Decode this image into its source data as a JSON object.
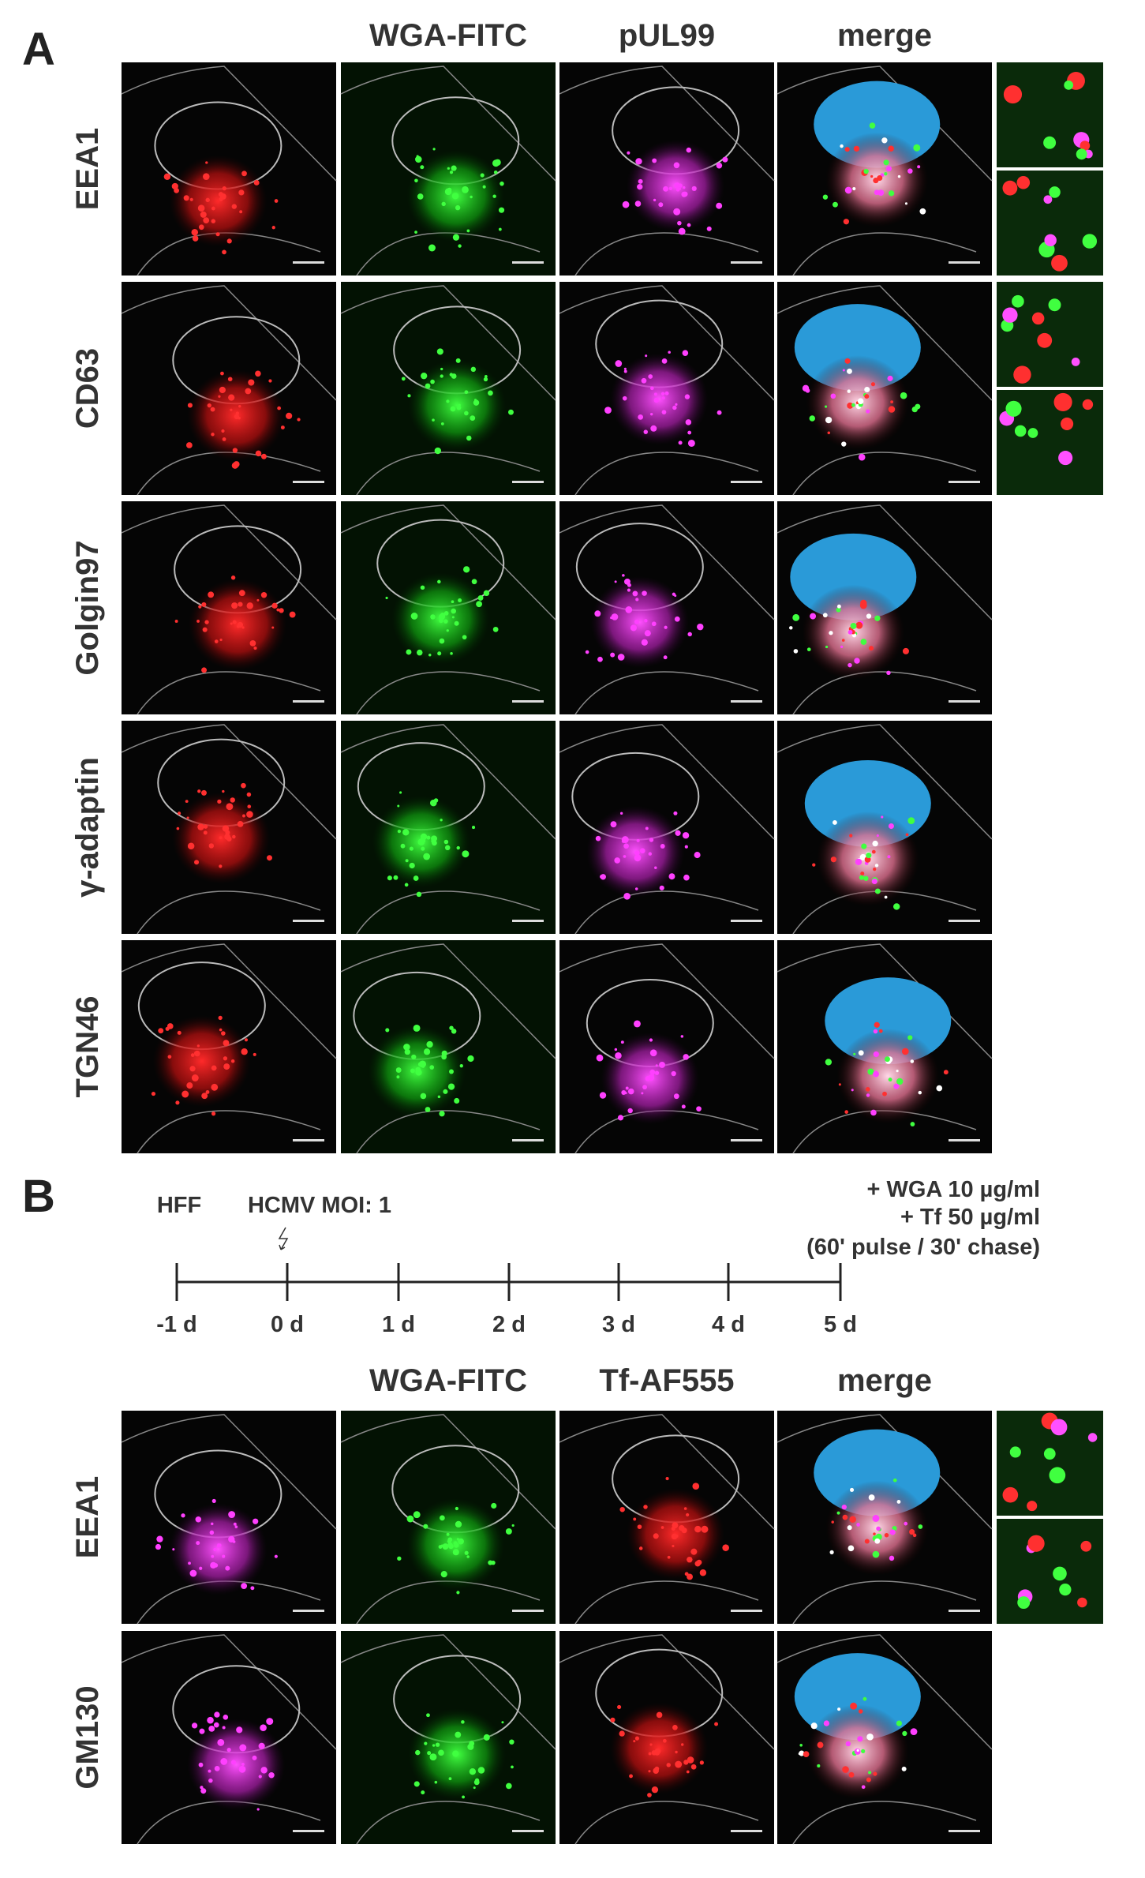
{
  "panel_a": {
    "label": "A",
    "columns": [
      "WGA-FITC",
      "pUL99",
      "merge"
    ],
    "rows": [
      "EEA1",
      "CD63",
      "Golgin97",
      "γ-adaptin",
      "TGN46"
    ]
  },
  "panel_b": {
    "label": "B",
    "timeline": {
      "start": "HFF",
      "infection": "HCMV MOI: 1",
      "treatment": [
        "+ WGA 10 µg/ml",
        "+ Tf 50 µg/ml",
        "(60' pulse / 30' chase)"
      ],
      "ticks": [
        "-1 d",
        "0 d",
        "1 d",
        "2 d",
        "3 d",
        "4 d",
        "5 d"
      ]
    },
    "columns": [
      "WGA-FITC",
      "Tf-AF555",
      "merge"
    ],
    "rows": [
      "EEA1",
      "GM130"
    ]
  }
}
